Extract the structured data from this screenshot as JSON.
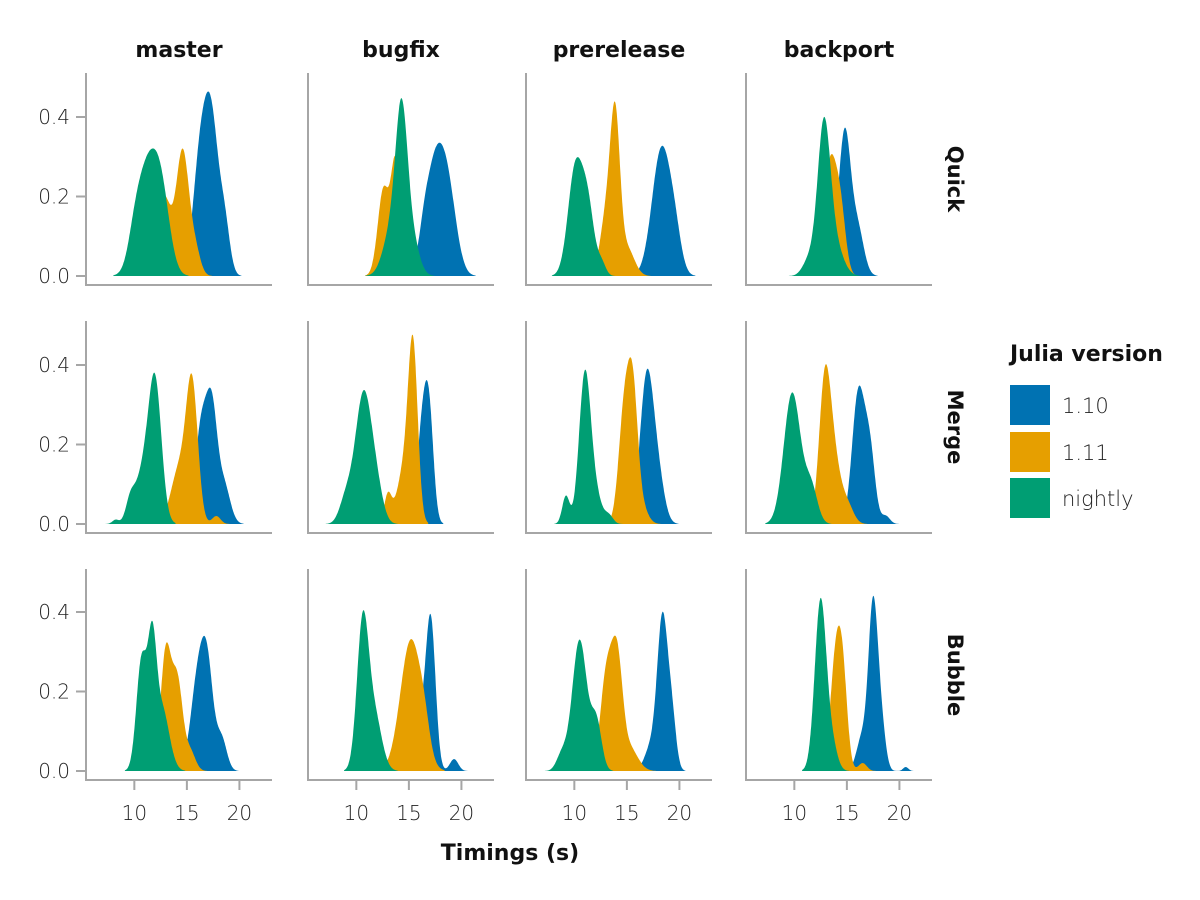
{
  "chart_data": {
    "type": "area",
    "subtype": "density-facet-grid",
    "title": "",
    "xlabel": "Timings (s)",
    "ylabel": "",
    "xlim": [
      5.4,
      23.1
    ],
    "ylim": [
      0,
      0.51
    ],
    "xticks": [
      10,
      15,
      20
    ],
    "yticks": [
      0.0,
      0.2,
      0.4
    ],
    "ytick_labels": [
      "0.0",
      "0.2",
      "0.4"
    ],
    "grid": false,
    "columns": [
      "master",
      "bugfix",
      "prerelease",
      "backport"
    ],
    "rows": [
      "Quick",
      "Merge",
      "Bubble"
    ],
    "legend": {
      "title": "Julia version",
      "position": "right",
      "entries": [
        {
          "label": "1.10",
          "color": "#0072b2"
        },
        {
          "label": "1.11",
          "color": "#e69f00"
        },
        {
          "label": "nightly",
          "color": "#009e73"
        }
      ]
    },
    "draw_order": [
      "1.10",
      "1.11",
      "nightly"
    ],
    "panels": [
      {
        "row": "Quick",
        "col": "master",
        "series": [
          {
            "name": "1.10",
            "peak_x": 17.3,
            "peak_density": 0.4,
            "components": [
              [
                16.3,
                0.7,
                0.3
              ],
              [
                17.4,
                0.65,
                0.34
              ],
              [
                18.6,
                0.5,
                0.12
              ]
            ]
          },
          {
            "name": "1.11",
            "peak_x": 14.5,
            "peak_density": 0.35,
            "components": [
              [
                12.8,
                0.7,
                0.2
              ],
              [
                14.6,
                0.6,
                0.31
              ],
              [
                15.8,
                0.5,
                0.06
              ]
            ]
          },
          {
            "name": "nightly",
            "peak_x": 11.6,
            "peak_density": 0.32,
            "components": [
              [
                11.2,
                1.0,
                0.26
              ],
              [
                12.6,
                0.8,
                0.17
              ],
              [
                10.0,
                0.6,
                0.05
              ]
            ]
          }
        ]
      },
      {
        "row": "Quick",
        "col": "bugfix",
        "series": [
          {
            "name": "1.10",
            "peak_x": 17.8,
            "peak_density": 0.32,
            "components": [
              [
                17.5,
                0.9,
                0.27
              ],
              [
                18.8,
                0.8,
                0.17
              ],
              [
                16.4,
                0.5,
                0.05
              ]
            ]
          },
          {
            "name": "1.11",
            "peak_x": 13.5,
            "peak_density": 0.34,
            "components": [
              [
                12.6,
                0.55,
                0.22
              ],
              [
                13.7,
                0.4,
                0.24
              ],
              [
                14.6,
                0.6,
                0.1
              ]
            ]
          },
          {
            "name": "nightly",
            "peak_x": 14.2,
            "peak_density": 0.43,
            "components": [
              [
                14.3,
                0.55,
                0.34
              ],
              [
                13.4,
                0.8,
                0.12
              ],
              [
                15.2,
                0.7,
                0.1
              ]
            ]
          }
        ]
      },
      {
        "row": "Quick",
        "col": "prerelease",
        "series": [
          {
            "name": "1.10",
            "peak_x": 18.3,
            "peak_density": 0.34,
            "components": [
              [
                18.3,
                0.9,
                0.32
              ],
              [
                19.6,
                0.6,
                0.07
              ]
            ]
          },
          {
            "name": "1.11",
            "peak_x": 14.0,
            "peak_density": 0.47,
            "components": [
              [
                13.9,
                0.45,
                0.35
              ],
              [
                13.1,
                0.6,
                0.16
              ],
              [
                15.0,
                0.7,
                0.07
              ]
            ]
          },
          {
            "name": "nightly",
            "peak_x": 10.3,
            "peak_density": 0.35,
            "components": [
              [
                10.1,
                0.7,
                0.27
              ],
              [
                11.3,
                0.6,
                0.16
              ],
              [
                12.6,
                0.4,
                0.03
              ]
            ]
          }
        ]
      },
      {
        "row": "Quick",
        "col": "backport",
        "series": [
          {
            "name": "1.10",
            "peak_x": 14.8,
            "peak_density": 0.4,
            "components": [
              [
                14.8,
                0.55,
                0.35
              ],
              [
                16.0,
                0.6,
                0.12
              ],
              [
                13.8,
                0.5,
                0.05
              ]
            ]
          },
          {
            "name": "1.11",
            "peak_x": 13.4,
            "peak_density": 0.36,
            "components": [
              [
                13.4,
                0.6,
                0.28
              ],
              [
                14.4,
                0.5,
                0.15
              ],
              [
                11.0,
                0.4,
                0.01
              ]
            ]
          },
          {
            "name": "nightly",
            "peak_x": 12.8,
            "peak_density": 0.42,
            "components": [
              [
                12.8,
                0.6,
                0.36
              ],
              [
                13.8,
                0.8,
                0.08
              ],
              [
                11.4,
                0.6,
                0.04
              ]
            ]
          }
        ]
      },
      {
        "row": "Merge",
        "col": "master",
        "series": [
          {
            "name": "1.10",
            "peak_x": 17.3,
            "peak_density": 0.34,
            "components": [
              [
                16.4,
                0.6,
                0.25
              ],
              [
                17.4,
                0.5,
                0.25
              ],
              [
                18.5,
                0.6,
                0.1
              ]
            ]
          },
          {
            "name": "1.11",
            "peak_x": 15.5,
            "peak_density": 0.41,
            "components": [
              [
                15.5,
                0.55,
                0.33
              ],
              [
                14.3,
                0.8,
                0.14
              ],
              [
                17.8,
                0.4,
                0.02
              ]
            ]
          },
          {
            "name": "nightly",
            "peak_x": 12.0,
            "peak_density": 0.4,
            "components": [
              [
                12.0,
                0.6,
                0.3
              ],
              [
                11.0,
                0.9,
                0.14
              ],
              [
                9.6,
                0.4,
                0.04
              ],
              [
                8.2,
                0.3,
                0.01
              ]
            ]
          }
        ]
      },
      {
        "row": "Merge",
        "col": "bugfix",
        "series": [
          {
            "name": "1.10",
            "peak_x": 16.6,
            "peak_density": 0.36,
            "components": [
              [
                16.4,
                0.55,
                0.28
              ],
              [
                17.0,
                0.4,
                0.16
              ]
            ]
          },
          {
            "name": "1.11",
            "peak_x": 15.3,
            "peak_density": 0.48,
            "components": [
              [
                15.4,
                0.45,
                0.4
              ],
              [
                14.6,
                0.7,
                0.14
              ],
              [
                13.0,
                0.35,
                0.07
              ]
            ]
          },
          {
            "name": "nightly",
            "peak_x": 10.8,
            "peak_density": 0.36,
            "components": [
              [
                10.7,
                0.8,
                0.33
              ],
              [
                9.0,
                0.6,
                0.06
              ],
              [
                12.0,
                0.6,
                0.06
              ]
            ]
          }
        ]
      },
      {
        "row": "Merge",
        "col": "prerelease",
        "series": [
          {
            "name": "1.10",
            "peak_x": 17.0,
            "peak_density": 0.4,
            "components": [
              [
                16.9,
                0.65,
                0.37
              ],
              [
                18.0,
                0.6,
                0.1
              ]
            ]
          },
          {
            "name": "1.11",
            "peak_x": 15.4,
            "peak_density": 0.4,
            "components": [
              [
                14.8,
                0.55,
                0.3
              ],
              [
                15.6,
                0.45,
                0.26
              ],
              [
                16.3,
                0.6,
                0.05
              ]
            ]
          },
          {
            "name": "nightly",
            "peak_x": 11.0,
            "peak_density": 0.41,
            "components": [
              [
                11.0,
                0.55,
                0.37
              ],
              [
                9.2,
                0.35,
                0.07
              ],
              [
                12.0,
                0.6,
                0.07
              ],
              [
                13.3,
                0.4,
                0.02
              ]
            ]
          }
        ]
      },
      {
        "row": "Merge",
        "col": "backport",
        "series": [
          {
            "name": "1.10",
            "peak_x": 16.2,
            "peak_density": 0.38,
            "components": [
              [
                16.1,
                0.6,
                0.33
              ],
              [
                17.2,
                0.5,
                0.17
              ],
              [
                18.7,
                0.4,
                0.02
              ]
            ]
          },
          {
            "name": "1.11",
            "peak_x": 13.0,
            "peak_density": 0.41,
            "components": [
              [
                12.9,
                0.55,
                0.35
              ],
              [
                13.8,
                0.6,
                0.14
              ],
              [
                15.0,
                0.6,
                0.05
              ]
            ]
          },
          {
            "name": "nightly",
            "peak_x": 9.8,
            "peak_density": 0.36,
            "components": [
              [
                9.8,
                0.8,
                0.33
              ],
              [
                11.6,
                0.6,
                0.09
              ]
            ]
          }
        ]
      },
      {
        "row": "Bubble",
        "col": "master",
        "series": [
          {
            "name": "1.10",
            "peak_x": 16.8,
            "peak_density": 0.35,
            "components": [
              [
                16.1,
                0.7,
                0.24
              ],
              [
                17.0,
                0.55,
                0.2
              ],
              [
                18.3,
                0.5,
                0.08
              ]
            ]
          },
          {
            "name": "1.11",
            "peak_x": 13.0,
            "peak_density": 0.37,
            "components": [
              [
                13.0,
                0.5,
                0.3
              ],
              [
                14.1,
                0.5,
                0.22
              ],
              [
                15.3,
                0.5,
                0.05
              ]
            ]
          },
          {
            "name": "nightly",
            "peak_x": 11.6,
            "peak_density": 0.39,
            "components": [
              [
                10.7,
                0.5,
                0.28
              ],
              [
                11.7,
                0.4,
                0.27
              ],
              [
                12.6,
                0.7,
                0.16
              ]
            ]
          }
        ]
      },
      {
        "row": "Bubble",
        "col": "bugfix",
        "series": [
          {
            "name": "1.10",
            "peak_x": 17.0,
            "peak_density": 0.41,
            "components": [
              [
                17.1,
                0.45,
                0.35
              ],
              [
                16.2,
                0.6,
                0.13
              ],
              [
                19.3,
                0.4,
                0.03
              ]
            ]
          },
          {
            "name": "1.11",
            "peak_x": 15.2,
            "peak_density": 0.35,
            "components": [
              [
                15.2,
                1.0,
                0.33
              ],
              [
                16.5,
                0.5,
                0.05
              ]
            ]
          },
          {
            "name": "nightly",
            "peak_x": 10.6,
            "peak_density": 0.43,
            "components": [
              [
                10.6,
                0.55,
                0.36
              ],
              [
                11.7,
                0.7,
                0.14
              ]
            ]
          }
        ]
      },
      {
        "row": "Bubble",
        "col": "prerelease",
        "series": [
          {
            "name": "1.10",
            "peak_x": 18.4,
            "peak_density": 0.43,
            "components": [
              [
                18.4,
                0.5,
                0.38
              ],
              [
                19.3,
                0.4,
                0.12
              ],
              [
                17.3,
                0.6,
                0.06
              ]
            ]
          },
          {
            "name": "1.11",
            "peak_x": 14.0,
            "peak_density": 0.36,
            "components": [
              [
                13.1,
                0.6,
                0.25
              ],
              [
                14.1,
                0.5,
                0.24
              ],
              [
                15.2,
                0.8,
                0.06
              ]
            ]
          },
          {
            "name": "nightly",
            "peak_x": 10.5,
            "peak_density": 0.37,
            "components": [
              [
                10.5,
                0.7,
                0.33
              ],
              [
                12.1,
                0.5,
                0.12
              ],
              [
                8.8,
                0.5,
                0.04
              ]
            ]
          }
        ]
      },
      {
        "row": "Bubble",
        "col": "backport",
        "series": [
          {
            "name": "1.10",
            "peak_x": 17.5,
            "peak_density": 0.48,
            "components": [
              [
                17.5,
                0.45,
                0.42
              ],
              [
                16.4,
                0.5,
                0.08
              ],
              [
                18.3,
                0.4,
                0.1
              ],
              [
                20.6,
                0.25,
                0.01
              ]
            ]
          },
          {
            "name": "1.11",
            "peak_x": 14.3,
            "peak_density": 0.35,
            "components": [
              [
                13.9,
                0.5,
                0.26
              ],
              [
                14.6,
                0.45,
                0.22
              ],
              [
                16.5,
                0.4,
                0.02
              ]
            ]
          },
          {
            "name": "nightly",
            "peak_x": 12.5,
            "peak_density": 0.46,
            "components": [
              [
                12.5,
                0.55,
                0.43
              ],
              [
                13.6,
                0.5,
                0.06
              ]
            ]
          }
        ]
      }
    ]
  }
}
